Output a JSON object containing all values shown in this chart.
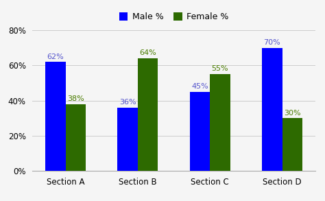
{
  "categories": [
    "Section A",
    "Section B",
    "Section C",
    "Section D"
  ],
  "male_values": [
    62,
    36,
    45,
    70
  ],
  "female_values": [
    38,
    64,
    55,
    30
  ],
  "male_color": "#0000ff",
  "female_color": "#2d6a00",
  "male_label": "Male %",
  "female_label": "Female %",
  "male_text_color": "#5555cc",
  "female_text_color": "#4a7c00",
  "ylim": [
    0,
    80
  ],
  "yticks": [
    0,
    20,
    40,
    60,
    80
  ],
  "bar_width": 0.28,
  "background_color": "#f5f5f5",
  "grid_color": "#cccccc",
  "label_fontsize": 8,
  "tick_fontsize": 8.5,
  "legend_fontsize": 9
}
